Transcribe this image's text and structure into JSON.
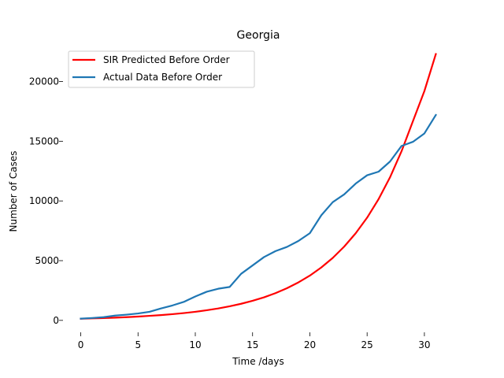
{
  "chart_data": {
    "type": "line",
    "title": "Georgia",
    "xlabel": "Time /days",
    "ylabel": "Number of Cases",
    "xlim": [
      -1.55,
      32.55
    ],
    "ylim": [
      -1000,
      23000
    ],
    "x_ticks": [
      0,
      5,
      10,
      15,
      20,
      25,
      30
    ],
    "y_ticks": [
      0,
      5000,
      10000,
      15000,
      20000
    ],
    "grid": false,
    "legend": "top-left",
    "x": [
      0,
      1,
      2,
      3,
      4,
      5,
      6,
      7,
      8,
      9,
      10,
      11,
      12,
      13,
      14,
      15,
      16,
      17,
      18,
      19,
      20,
      21,
      22,
      23,
      24,
      25,
      26,
      27,
      28,
      29,
      30,
      31
    ],
    "series": [
      {
        "name": "SIR Predicted Before Order",
        "color": "#ff0000",
        "values": [
          140,
          165,
          195,
          230,
          270,
          320,
          380,
          440,
          520,
          610,
          720,
          850,
          1000,
          1180,
          1390,
          1640,
          1930,
          2280,
          2690,
          3180,
          3750,
          4430,
          5230,
          6180,
          7290,
          8600,
          10150,
          11980,
          14150,
          16680,
          19200,
          22300
        ]
      },
      {
        "name": "Actual Data Before Order",
        "color": "#1f77b4",
        "values": [
          150,
          200,
          270,
          400,
          480,
          580,
          720,
          1000,
          1250,
          1550,
          2000,
          2400,
          2650,
          2800,
          3900,
          4600,
          5300,
          5800,
          6150,
          6650,
          7300,
          8800,
          9900,
          10550,
          11450,
          12150,
          12450,
          13300,
          14600,
          14950,
          15650,
          17200
        ]
      }
    ]
  }
}
